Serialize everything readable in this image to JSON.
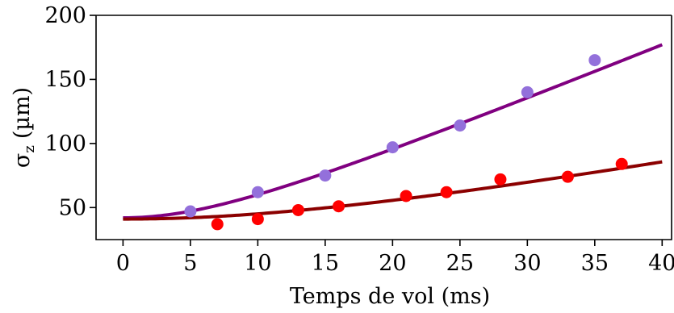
{
  "chart_data": {
    "type": "scatter",
    "title": "",
    "xlabel": "Temps de vol (ms)",
    "ylabel": "σ",
    "ylabel_sub": "z",
    "ylabel_unit": "(µm)",
    "xlim": [
      -2,
      40.7
    ],
    "ylim": [
      25,
      200
    ],
    "xticks": [
      0,
      5,
      10,
      15,
      20,
      25,
      30,
      35,
      40
    ],
    "yticks": [
      50,
      100,
      150,
      200
    ],
    "grid": false,
    "legend": "none",
    "series": [
      {
        "kind": "points",
        "color": "#9370db",
        "x": [
          5,
          10,
          15,
          20,
          25,
          30,
          35
        ],
        "y": [
          47,
          62,
          75,
          97,
          114,
          140,
          165
        ]
      },
      {
        "kind": "points",
        "color": "#ff0000",
        "x": [
          7,
          10,
          13,
          16,
          21,
          24,
          28,
          33,
          37
        ],
        "y": [
          37,
          41,
          48,
          51,
          59,
          62,
          72,
          74,
          84
        ]
      },
      {
        "kind": "fit",
        "color": "#800080",
        "sigma0": 42,
        "velocity": 4.3
      },
      {
        "kind": "fit",
        "color": "#8b0000",
        "sigma0": 41,
        "velocity": 1.88
      }
    ]
  }
}
